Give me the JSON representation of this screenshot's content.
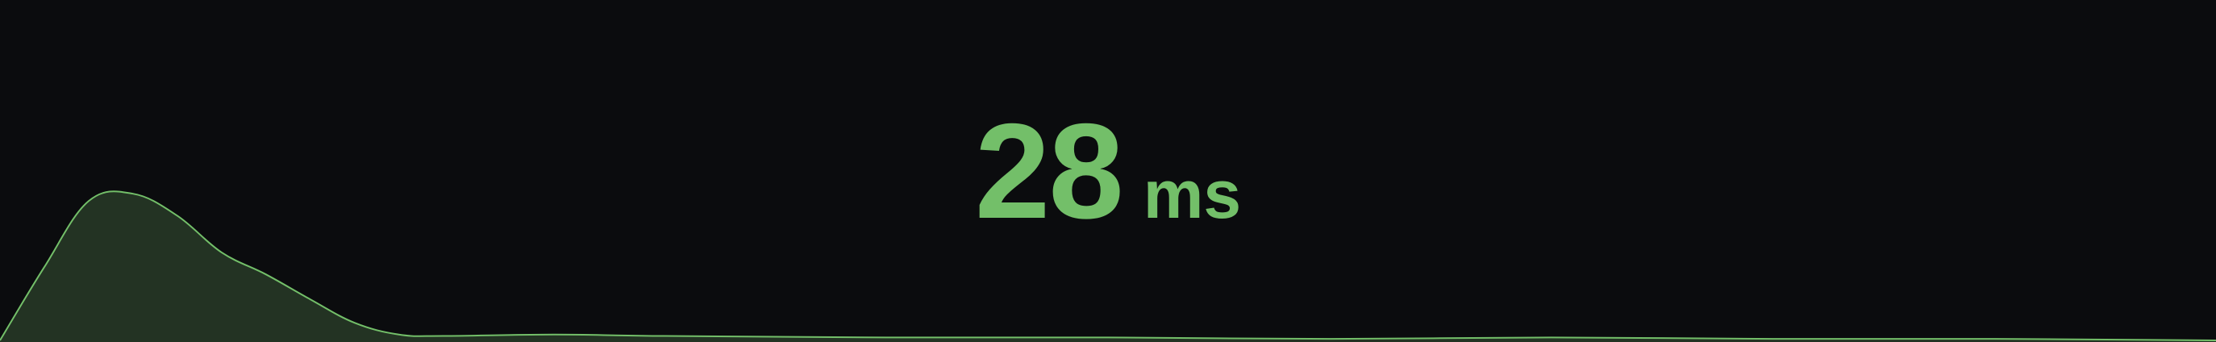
{
  "stat": {
    "value": "28",
    "unit": "ms"
  },
  "colors": {
    "background": "#0b0c0e",
    "value": "#73bf69",
    "sparkline_line": "#73bf69",
    "sparkline_fill": "#233323"
  },
  "chart_data": {
    "type": "area",
    "x": [
      0,
      2,
      4,
      6,
      8,
      10,
      12,
      14,
      16,
      18,
      20,
      25,
      30,
      40,
      50,
      60,
      70,
      80,
      90,
      100
    ],
    "values": [
      0,
      50,
      95,
      100,
      85,
      60,
      45,
      28,
      12,
      4,
      3,
      4,
      3,
      2,
      2,
      1,
      2,
      1,
      1,
      0
    ],
    "ylim": [
      0,
      110
    ],
    "grid": false,
    "legend": "none"
  }
}
